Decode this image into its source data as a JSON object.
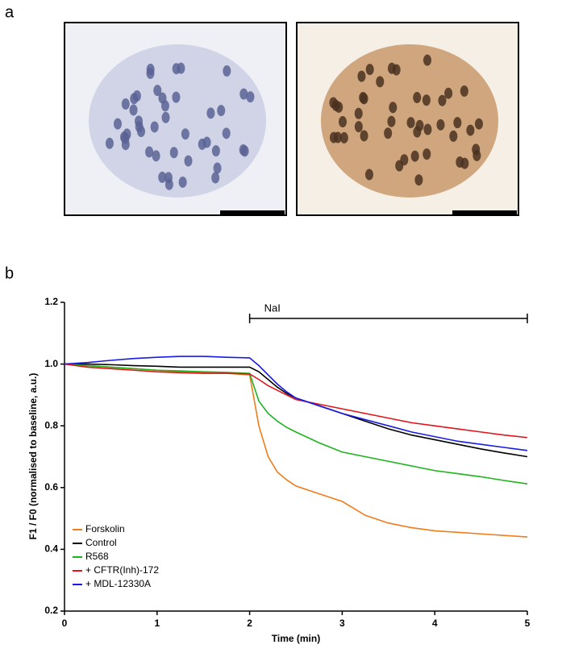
{
  "panel_labels": [
    "a",
    "b"
  ],
  "chart_data": {
    "type": "line",
    "x_label": "Time (min)",
    "y_label": "F1 / F0 (normalised to baseline, a.u.)",
    "annotation": {
      "text": "NaI",
      "start": 2,
      "end": 5
    },
    "xlim": [
      0,
      5
    ],
    "xticks": [
      0,
      1,
      2,
      3,
      4,
      5
    ],
    "ylim": [
      0.2,
      1.2
    ],
    "yticks": [
      0.2,
      0.4,
      0.6,
      0.8,
      {
        "value": 1,
        "label": "1.0"
      },
      1.2
    ],
    "legend": "lower left",
    "x": [
      0,
      0.25,
      0.5,
      0.75,
      1,
      1.25,
      1.5,
      1.75,
      2,
      2.1,
      2.2,
      2.3,
      2.4,
      2.5,
      2.75,
      3,
      3.25,
      3.5,
      3.75,
      4,
      4.25,
      4.5,
      4.75,
      5
    ],
    "series": [
      {
        "name": "Forskolin",
        "color": "#f07c1a",
        "values": [
          1.0,
          0.995,
          0.99,
          0.985,
          0.98,
          0.975,
          0.972,
          0.97,
          0.965,
          0.8,
          0.7,
          0.65,
          0.625,
          0.605,
          0.58,
          0.555,
          0.51,
          0.485,
          0.47,
          0.46,
          0.455,
          0.45,
          0.445,
          0.44
        ]
      },
      {
        "name": "Control",
        "color": "#000000",
        "values": [
          1.0,
          1.0,
          0.998,
          0.995,
          0.993,
          0.99,
          0.99,
          0.99,
          0.99,
          0.975,
          0.95,
          0.925,
          0.905,
          0.89,
          0.865,
          0.84,
          0.815,
          0.79,
          0.77,
          0.755,
          0.74,
          0.725,
          0.712,
          0.7
        ]
      },
      {
        "name": "R568",
        "color": "#1db31d",
        "values": [
          1.0,
          0.995,
          0.99,
          0.985,
          0.98,
          0.978,
          0.975,
          0.973,
          0.97,
          0.88,
          0.84,
          0.815,
          0.795,
          0.78,
          0.745,
          0.715,
          0.7,
          0.685,
          0.67,
          0.655,
          0.645,
          0.635,
          0.623,
          0.612
        ]
      },
      {
        "name": "+ CFTR(Inh)-172",
        "color": "#e0161b",
        "values": [
          1.0,
          0.99,
          0.985,
          0.98,
          0.975,
          0.972,
          0.97,
          0.97,
          0.968,
          0.95,
          0.93,
          0.915,
          0.9,
          0.885,
          0.87,
          0.855,
          0.84,
          0.825,
          0.81,
          0.8,
          0.79,
          0.78,
          0.77,
          0.762
        ]
      },
      {
        "name": "+ MDL-12330A",
        "color": "#1a1ae6",
        "values": [
          1.0,
          1.005,
          1.012,
          1.018,
          1.022,
          1.025,
          1.025,
          1.022,
          1.02,
          0.995,
          0.965,
          0.935,
          0.91,
          0.89,
          0.865,
          0.84,
          0.82,
          0.8,
          0.78,
          0.765,
          0.75,
          0.74,
          0.73,
          0.72
        ]
      }
    ]
  }
}
